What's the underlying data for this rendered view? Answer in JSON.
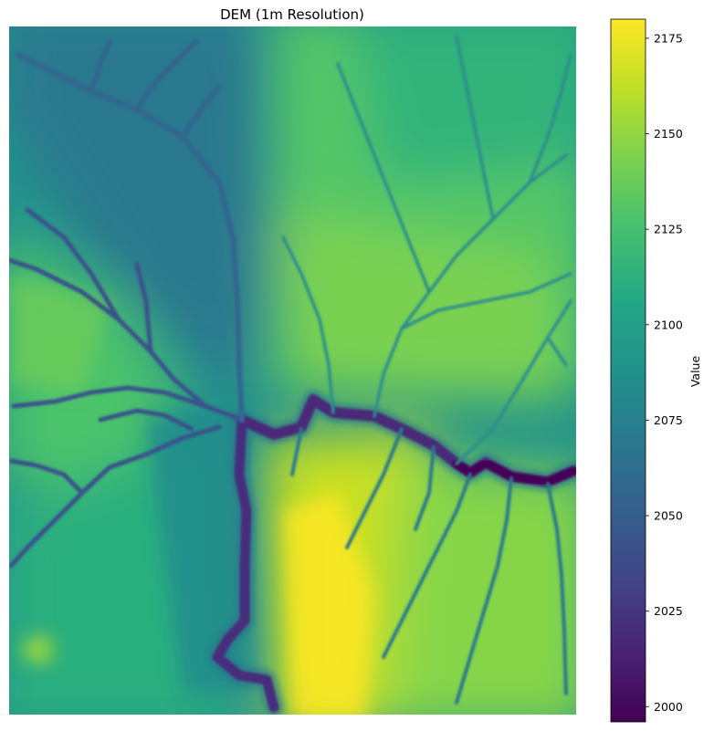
{
  "chart_data": {
    "type": "heatmap",
    "title": "DEM (1m Resolution)",
    "colormap": "viridis",
    "axes_visible": false,
    "colorbar": {
      "label": "Value",
      "range": [
        1996,
        2180
      ],
      "ticks": [
        2000,
        2025,
        2050,
        2075,
        2100,
        2125,
        2150,
        2175
      ],
      "tick_labels": [
        "2000",
        "2025",
        "2050",
        "2075",
        "2100",
        "2125",
        "2150",
        "2175"
      ]
    },
    "features": {
      "main_river": "low channel (~2000–2030) running from the west-center confluence eastward to the right edge",
      "tributary": "channel running south from the confluence to the bottom edge",
      "highlands": "southeast and east-center highest (~2150–2180); west-center moderate (~2100–2130); northwest lower (~2070–2090)"
    }
  }
}
